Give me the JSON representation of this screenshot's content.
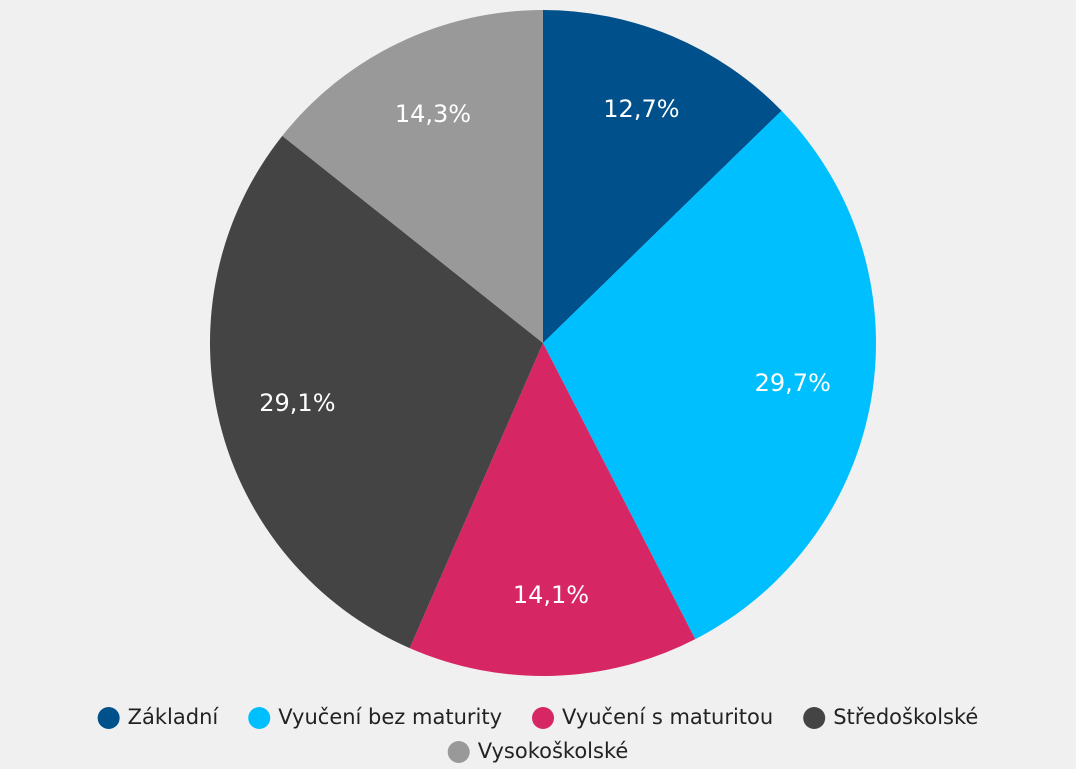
{
  "chart_data": {
    "type": "pie",
    "categories": [
      "Základní",
      "Vyučení bez maturity",
      "Vyučení s maturitou",
      "Středoškolské",
      "Vysokoškolské"
    ],
    "values": [
      12.7,
      29.7,
      14.1,
      29.1,
      14.3
    ],
    "value_labels": [
      "12,7%",
      "29,7%",
      "14,1%",
      "29,1%",
      "14,3%"
    ],
    "colors": [
      "#00508c",
      "#00bfff",
      "#d62664",
      "#444444",
      "#999999"
    ],
    "legend": "bottom"
  }
}
